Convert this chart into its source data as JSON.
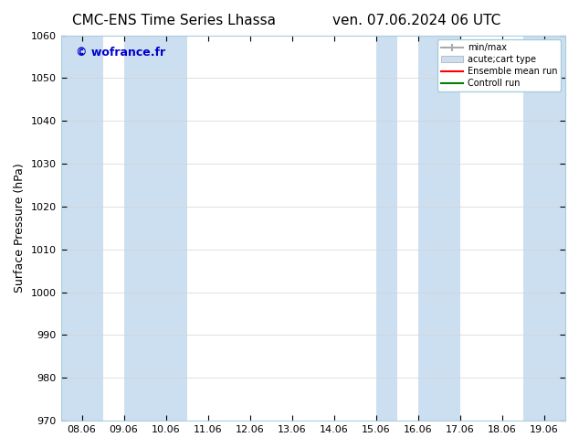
{
  "title_left": "CMC-ENS Time Series Lhassa",
  "title_right": "ven. 07.06.2024 06 UTC",
  "ylabel": "Surface Pressure (hPa)",
  "ylim": [
    970,
    1060
  ],
  "yticks": [
    970,
    980,
    990,
    1000,
    1010,
    1020,
    1030,
    1040,
    1050,
    1060
  ],
  "xtick_labels": [
    "08.06",
    "09.06",
    "10.06",
    "11.06",
    "12.06",
    "13.06",
    "14.06",
    "15.06",
    "16.06",
    "17.06",
    "18.06",
    "19.06"
  ],
  "xtick_positions": [
    0,
    1,
    2,
    3,
    4,
    5,
    6,
    7,
    8,
    9,
    10,
    11
  ],
  "xlim": [
    -0.5,
    11.5
  ],
  "shaded_bands": [
    {
      "xmin": -0.5,
      "xmax": 0.5,
      "color": "#ccdff0"
    },
    {
      "xmin": 1.0,
      "xmax": 2.5,
      "color": "#ccdff0"
    },
    {
      "xmin": 7.0,
      "xmax": 7.5,
      "color": "#ccdff0"
    },
    {
      "xmin": 8.0,
      "xmax": 9.0,
      "color": "#ccdff0"
    },
    {
      "xmin": 10.5,
      "xmax": 11.5,
      "color": "#ccdff0"
    }
  ],
  "watermark": "© wofrance.fr",
  "watermark_color": "#0000cc",
  "background_color": "#ffffff",
  "legend_entries": [
    {
      "label": "min/max",
      "color": "#aaaaaa",
      "type": "errorbar"
    },
    {
      "label": "acute;cart type",
      "color": "#ccdff0",
      "type": "fill"
    },
    {
      "label": "Ensemble mean run",
      "color": "#ff0000",
      "type": "line"
    },
    {
      "label": "Controll run",
      "color": "#008000",
      "type": "line"
    }
  ],
  "title_fontsize": 11,
  "tick_fontsize": 8,
  "ylabel_fontsize": 9
}
